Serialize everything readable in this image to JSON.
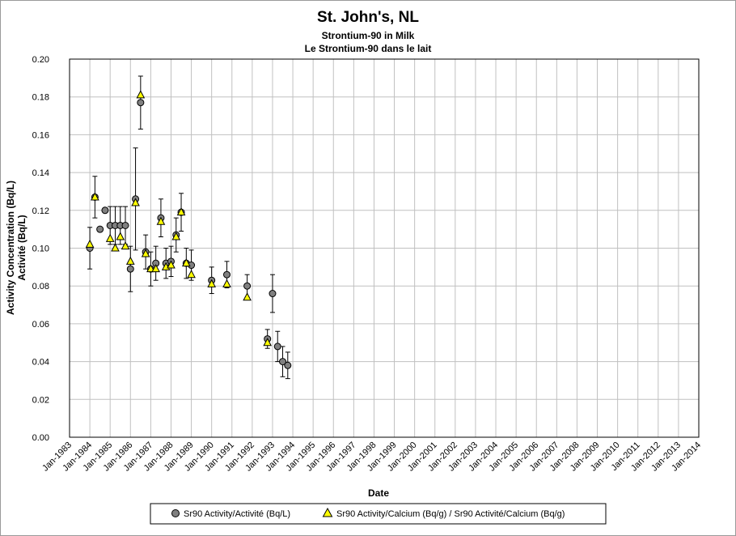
{
  "chart_data": {
    "type": "scatter",
    "title": "St. John's, NL",
    "subtitle_en": "Strontium-90 in Milk",
    "subtitle_fr": "Le Strontium-90 dans le lait",
    "xlabel": "Date",
    "ylabel_line1": "Activity Concentration (Bq/L)",
    "ylabel_line2": "Activité (Bq/L)",
    "xlim": [
      1983,
      2014
    ],
    "ylim": [
      0,
      0.2
    ],
    "grid": true,
    "legend_placement": "bottom",
    "x_ticks": [
      "Jan-1983",
      "Jan-1984",
      "Jan-1985",
      "Jan-1986",
      "Jan-1987",
      "Jan-1988",
      "Jan-1989",
      "Jan-1990",
      "Jan-1991",
      "Jan-1992",
      "Jan-1993",
      "Jan-1994",
      "Jan-1995",
      "Jan-1996",
      "Jan-1997",
      "Jan-1998",
      "Jan-1999",
      "Jan-2000",
      "Jan-2001",
      "Jan-2002",
      "Jan-2003",
      "Jan-2004",
      "Jan-2005",
      "Jan-2006",
      "Jan-2007",
      "Jan-2008",
      "Jan-2009",
      "Jan-2010",
      "Jan-2011",
      "Jan-2012",
      "Jan-2013",
      "Jan-2014"
    ],
    "y_ticks": [
      "0.00",
      "0.02",
      "0.04",
      "0.06",
      "0.08",
      "0.10",
      "0.12",
      "0.14",
      "0.16",
      "0.18",
      "0.20"
    ],
    "series": [
      {
        "name": "Sr90 Activity/Activité (Bq/L)",
        "marker": "circle",
        "color": "#808080",
        "points": [
          {
            "x": "1984-01",
            "y": 0.1,
            "err": 0.011
          },
          {
            "x": "1984-04",
            "y": 0.127,
            "err": 0.011
          },
          {
            "x": "1984-07",
            "y": 0.11,
            "err": 0
          },
          {
            "x": "1984-10",
            "y": 0.12,
            "err": 0
          },
          {
            "x": "1985-01",
            "y": 0.112,
            "err": 0.01
          },
          {
            "x": "1985-04",
            "y": 0.112,
            "err": 0.01
          },
          {
            "x": "1985-07",
            "y": 0.112,
            "err": 0.01
          },
          {
            "x": "1985-10",
            "y": 0.112,
            "err": 0.01
          },
          {
            "x": "1986-01",
            "y": 0.089,
            "err": 0.012
          },
          {
            "x": "1986-04",
            "y": 0.126,
            "err": 0.027
          },
          {
            "x": "1986-07",
            "y": 0.177,
            "err": 0.014
          },
          {
            "x": "1986-10",
            "y": 0.098,
            "err": 0.009
          },
          {
            "x": "1987-01",
            "y": 0.089,
            "err": 0.009
          },
          {
            "x": "1987-04",
            "y": 0.092,
            "err": 0.009
          },
          {
            "x": "1987-07",
            "y": 0.116,
            "err": 0.01
          },
          {
            "x": "1987-10",
            "y": 0.092,
            "err": 0.008
          },
          {
            "x": "1988-01",
            "y": 0.093,
            "err": 0.008
          },
          {
            "x": "1988-04",
            "y": 0.107,
            "err": 0.009
          },
          {
            "x": "1988-07",
            "y": 0.119,
            "err": 0.01
          },
          {
            "x": "1988-10",
            "y": 0.092,
            "err": 0.008
          },
          {
            "x": "1989-01",
            "y": 0.091,
            "err": 0.008
          },
          {
            "x": "1990-01",
            "y": 0.083,
            "err": 0.007
          },
          {
            "x": "1990-10",
            "y": 0.086,
            "err": 0.007
          },
          {
            "x": "1991-10",
            "y": 0.08,
            "err": 0.006
          },
          {
            "x": "1993-01",
            "y": 0.076,
            "err": 0.01
          },
          {
            "x": "1992-10",
            "y": 0.052,
            "err": 0.005
          },
          {
            "x": "1993-04",
            "y": 0.048,
            "err": 0.008
          },
          {
            "x": "1993-07",
            "y": 0.04,
            "err": 0.008
          },
          {
            "x": "1993-10",
            "y": 0.038,
            "err": 0.007
          }
        ]
      },
      {
        "name": "Sr90 Activity/Calcium (Bq/g) / Sr90 Activité/Calcium (Bq/g)",
        "marker": "triangle",
        "color": "#ffff00",
        "points": [
          {
            "x": "1984-01",
            "y": 0.102
          },
          {
            "x": "1984-04",
            "y": 0.127
          },
          {
            "x": "1985-01",
            "y": 0.105
          },
          {
            "x": "1985-04",
            "y": 0.1
          },
          {
            "x": "1985-07",
            "y": 0.106
          },
          {
            "x": "1985-10",
            "y": 0.101
          },
          {
            "x": "1986-01",
            "y": 0.093
          },
          {
            "x": "1986-04",
            "y": 0.124
          },
          {
            "x": "1986-07",
            "y": 0.181
          },
          {
            "x": "1986-10",
            "y": 0.097
          },
          {
            "x": "1987-01",
            "y": 0.089
          },
          {
            "x": "1987-04",
            "y": 0.089
          },
          {
            "x": "1987-07",
            "y": 0.114
          },
          {
            "x": "1987-10",
            "y": 0.09
          },
          {
            "x": "1988-01",
            "y": 0.091
          },
          {
            "x": "1988-04",
            "y": 0.106
          },
          {
            "x": "1988-07",
            "y": 0.119
          },
          {
            "x": "1988-10",
            "y": 0.092
          },
          {
            "x": "1989-01",
            "y": 0.086
          },
          {
            "x": "1990-01",
            "y": 0.081
          },
          {
            "x": "1990-10",
            "y": 0.081
          },
          {
            "x": "1991-10",
            "y": 0.074
          },
          {
            "x": "1992-10",
            "y": 0.05
          }
        ]
      }
    ]
  }
}
